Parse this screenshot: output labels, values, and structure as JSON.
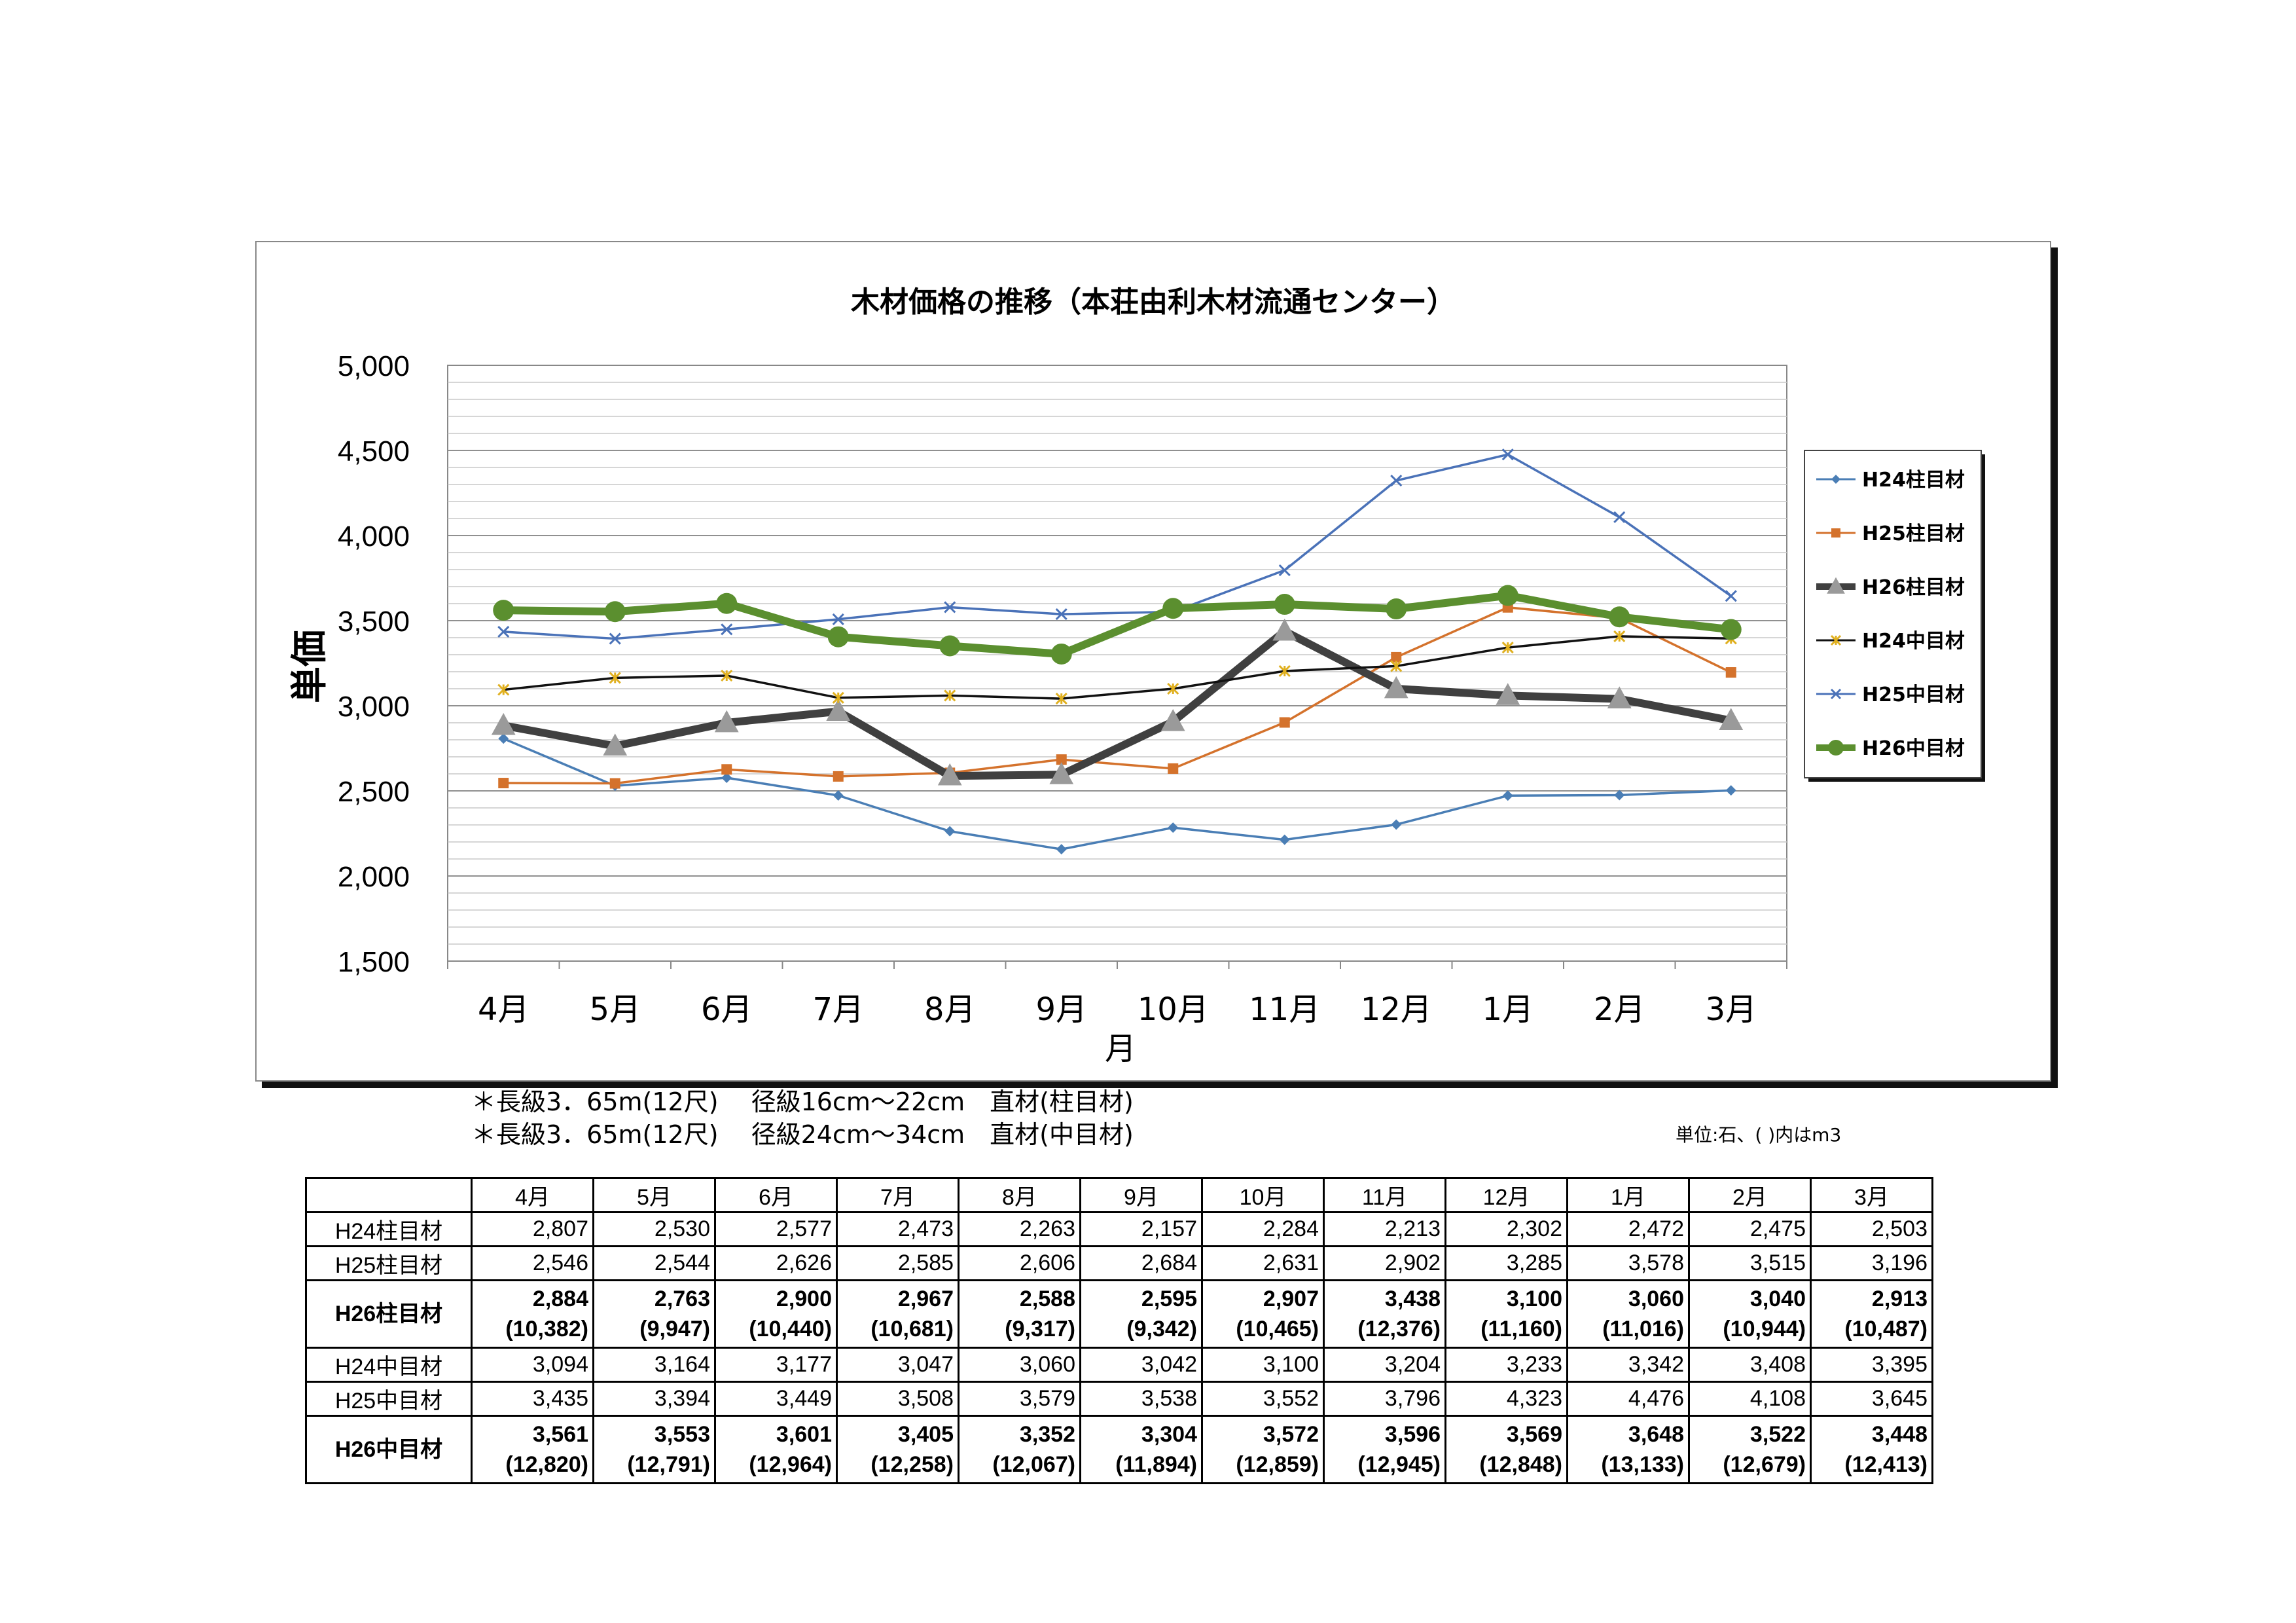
{
  "chart_data": {
    "type": "line",
    "title": "木材価格の推移（本荘由利木材流通センター）",
    "xlabel": "月",
    "ylabel": "単価",
    "categories": [
      "4月",
      "5月",
      "6月",
      "7月",
      "8月",
      "9月",
      "10月",
      "11月",
      "12月",
      "1月",
      "2月",
      "3月"
    ],
    "ylim": [
      1500,
      5000
    ],
    "yticks": [
      "1,500",
      "2,000",
      "2,500",
      "3,000",
      "3,500",
      "4,000",
      "4,500",
      "5,000"
    ],
    "ytick_values": [
      1500,
      2000,
      2500,
      3000,
      3500,
      4000,
      4500,
      5000
    ],
    "grid": true,
    "legend_position": "right",
    "series": [
      {
        "name": "H24柱目材",
        "color": "#4a7eb5",
        "marker": "diamond",
        "bold": false,
        "values": [
          2807,
          2530,
          2577,
          2473,
          2263,
          2157,
          2284,
          2213,
          2302,
          2472,
          2475,
          2503
        ]
      },
      {
        "name": "H25柱目材",
        "color": "#d4722c",
        "marker": "square",
        "bold": false,
        "values": [
          2546,
          2544,
          2626,
          2585,
          2606,
          2684,
          2631,
          2902,
          3285,
          3578,
          3515,
          3196
        ]
      },
      {
        "name": "H26柱目材",
        "color": "#404040",
        "marker": "triangle",
        "bold": true,
        "values": [
          2884,
          2763,
          2900,
          2967,
          2588,
          2595,
          2907,
          3438,
          3100,
          3060,
          3040,
          2913
        ]
      },
      {
        "name": "H24中目材",
        "color": "#111111",
        "marker": "star",
        "bold": false,
        "values": [
          3094,
          3164,
          3177,
          3047,
          3060,
          3042,
          3100,
          3204,
          3233,
          3342,
          3408,
          3395
        ]
      },
      {
        "name": "H25中目材",
        "color": "#4a72b8",
        "marker": "x",
        "bold": false,
        "values": [
          3435,
          3394,
          3449,
          3508,
          3579,
          3538,
          3552,
          3796,
          4323,
          4476,
          4108,
          3645
        ]
      },
      {
        "name": "H26中目材",
        "color": "#5b8f2f",
        "marker": "circle",
        "bold": true,
        "values": [
          3561,
          3553,
          3601,
          3405,
          3352,
          3304,
          3572,
          3596,
          3569,
          3648,
          3522,
          3448
        ]
      }
    ]
  },
  "notes": [
    "＊長級3．65m(12尺)　 径級16cm～22cm　直材(柱目材)",
    "＊長級3．65m(12尺)　 径級24cm～34cm　直材(中目材)"
  ],
  "unit_note": "単位:石、(  )内はm3",
  "table": {
    "headers": [
      "4月",
      "5月",
      "6月",
      "7月",
      "8月",
      "9月",
      "10月",
      "11月",
      "12月",
      "1月",
      "2月",
      "3月"
    ],
    "rows": [
      {
        "label": "H24柱目材",
        "bold": false,
        "values": [
          "2,807",
          "2,530",
          "2,577",
          "2,473",
          "2,263",
          "2,157",
          "2,284",
          "2,213",
          "2,302",
          "2,472",
          "2,475",
          "2,503"
        ]
      },
      {
        "label": "H25柱目材",
        "bold": false,
        "values": [
          "2,546",
          "2,544",
          "2,626",
          "2,585",
          "2,606",
          "2,684",
          "2,631",
          "2,902",
          "3,285",
          "3,578",
          "3,515",
          "3,196"
        ]
      },
      {
        "label": "H26柱目材",
        "bold": true,
        "values": [
          "2,884",
          "2,763",
          "2,900",
          "2,967",
          "2,588",
          "2,595",
          "2,907",
          "3,438",
          "3,100",
          "3,060",
          "3,040",
          "2,913"
        ],
        "sub": [
          "(10,382)",
          "(9,947)",
          "(10,440)",
          "(10,681)",
          "(9,317)",
          "(9,342)",
          "(10,465)",
          "(12,376)",
          "(11,160)",
          "(11,016)",
          "(10,944)",
          "(10,487)"
        ]
      },
      {
        "label": "H24中目材",
        "bold": false,
        "values": [
          "3,094",
          "3,164",
          "3,177",
          "3,047",
          "3,060",
          "3,042",
          "3,100",
          "3,204",
          "3,233",
          "3,342",
          "3,408",
          "3,395"
        ]
      },
      {
        "label": "H25中目材",
        "bold": false,
        "values": [
          "3,435",
          "3,394",
          "3,449",
          "3,508",
          "3,579",
          "3,538",
          "3,552",
          "3,796",
          "4,323",
          "4,476",
          "4,108",
          "3,645"
        ]
      },
      {
        "label": "H26中目材",
        "bold": true,
        "values": [
          "3,561",
          "3,553",
          "3,601",
          "3,405",
          "3,352",
          "3,304",
          "3,572",
          "3,596",
          "3,569",
          "3,648",
          "3,522",
          "3,448"
        ],
        "sub": [
          "(12,820)",
          "(12,791)",
          "(12,964)",
          "(12,258)",
          "(12,067)",
          "(11,894)",
          "(12,859)",
          "(12,945)",
          "(12,848)",
          "(13,133)",
          "(12,679)",
          "(12,413)"
        ]
      }
    ]
  }
}
